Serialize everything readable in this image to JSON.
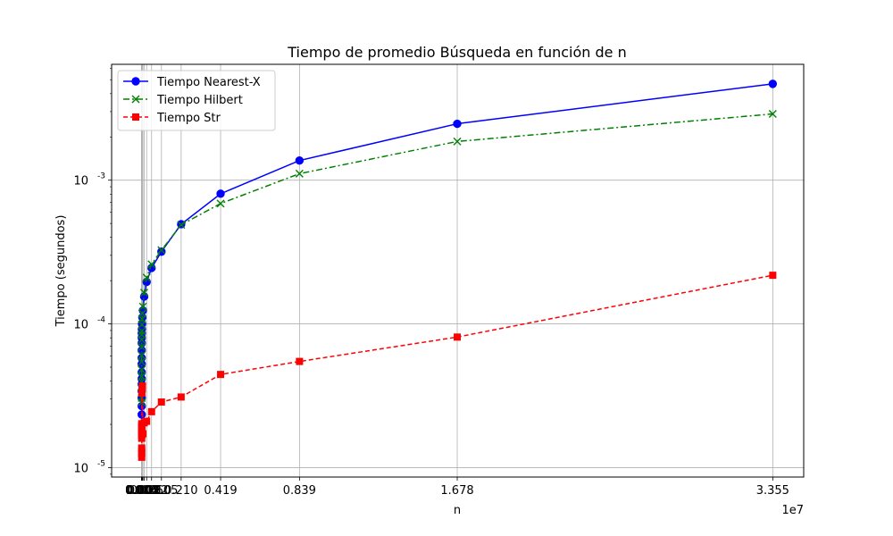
{
  "chart_data": {
    "type": "line",
    "title": "Tiempo de promedio Búsqueda en función de n",
    "xlabel": "n",
    "ylabel": "Tiempo (segundos)",
    "x_scale_label": "1e7",
    "y_scale": "log",
    "grid": true,
    "legend_position": "top-left",
    "xlim": [
      -1600000,
      35200000
    ],
    "ylim": [
      8.6e-06,
      0.0064
    ],
    "x_ticks": [
      {
        "value": 1,
        "label": "0.000"
      },
      {
        "value": 2,
        "label": "0.000"
      },
      {
        "value": 4,
        "label": "0.000"
      },
      {
        "value": 8,
        "label": "0.000"
      },
      {
        "value": 16,
        "label": "0.000"
      },
      {
        "value": 32,
        "label": "0.000"
      },
      {
        "value": 64,
        "label": "0.000"
      },
      {
        "value": 128,
        "label": "0.000"
      },
      {
        "value": 256,
        "label": "0.000"
      },
      {
        "value": 512,
        "label": "0.000"
      },
      {
        "value": 1024,
        "label": "0.000"
      },
      {
        "value": 2048,
        "label": "0.000"
      },
      {
        "value": 4096,
        "label": "0.000"
      },
      {
        "value": 8192,
        "label": "0.001"
      },
      {
        "value": 16384,
        "label": "0.002"
      },
      {
        "value": 32768,
        "label": "0.003"
      },
      {
        "value": 65536,
        "label": "0.007"
      },
      {
        "value": 131072,
        "label": "0.013"
      },
      {
        "value": 262144,
        "label": "0.026"
      },
      {
        "value": 524288,
        "label": "0.052"
      },
      {
        "value": 1048576,
        "label": "0.105"
      },
      {
        "value": 2097152,
        "label": "0.210"
      },
      {
        "value": 4194304,
        "label": "0.419"
      },
      {
        "value": 8388608,
        "label": "0.839"
      },
      {
        "value": 16777216,
        "label": "1.678"
      },
      {
        "value": 33554432,
        "label": "3.355"
      }
    ],
    "y_ticks": [
      {
        "value": 1e-05,
        "label": "10^-5"
      },
      {
        "value": 0.0001,
        "label": "10^-4"
      },
      {
        "value": 0.001,
        "label": "10^-3"
      }
    ],
    "x": [
      1,
      2,
      4,
      8,
      16,
      32,
      64,
      128,
      256,
      512,
      1024,
      2048,
      4096,
      8192,
      16384,
      32768,
      65536,
      131072,
      262144,
      524288,
      1048576,
      2097152,
      4194304,
      8388608,
      16777216,
      33554432
    ],
    "series": [
      {
        "name": "Tiempo Nearest-X",
        "color": "#0000ff",
        "marker": "circle",
        "line_style": "solid",
        "values": [
          2.34e-05,
          2.68e-05,
          3.05e-05,
          3.41e-05,
          3.8e-05,
          4.15e-05,
          4.6e-05,
          5.25e-05,
          5.8e-05,
          6.55e-05,
          7.35e-05,
          8e-05,
          8.6e-05,
          9.2e-05,
          0.0001,
          0.000111,
          0.000124,
          0.000155,
          0.000196,
          0.000245,
          0.000318,
          0.000494,
          0.000805,
          0.00137,
          0.00247,
          0.00468
        ]
      },
      {
        "name": "Tiempo Hilbert",
        "color": "#008000",
        "marker": "x",
        "line_style": "dashdot",
        "values": [
          2.84e-05,
          3.05e-05,
          3.3e-05,
          3.6e-05,
          3.95e-05,
          4.3e-05,
          4.8e-05,
          5.45e-05,
          6.05e-05,
          6.9e-05,
          7.75e-05,
          8.4e-05,
          8.9e-05,
          9.9e-05,
          0.000108,
          0.000118,
          0.000132,
          0.000165,
          0.00021,
          0.00026,
          0.000326,
          0.000489,
          0.000688,
          0.00111,
          0.00186,
          0.00289
        ]
      },
      {
        "name": "Tiempo Str",
        "color": "#ff0000",
        "marker": "square",
        "line_style": "dashed",
        "values": [
          1.18e-05,
          1.25e-05,
          1.3e-05,
          1.37e-05,
          1.6e-05,
          1.75e-05,
          1.9e-05,
          2.02e-05,
          1.95e-05,
          1.7e-05,
          1.68e-05,
          1.86e-05,
          1.92e-05,
          3.3e-05,
          3.55e-05,
          3.7e-05,
          1.72e-05,
          2.05e-05,
          2.1e-05,
          2.45e-05,
          2.86e-05,
          3.1e-05,
          4.45e-05,
          5.48e-05,
          8.1e-05,
          0.000218
        ]
      }
    ]
  }
}
